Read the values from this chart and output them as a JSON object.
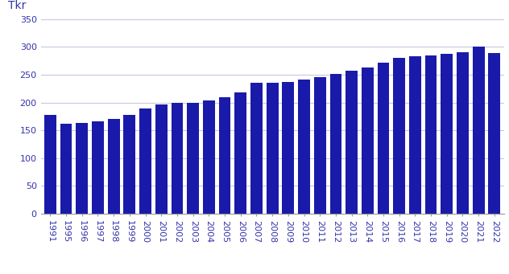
{
  "years": [
    "1991",
    "1995",
    "1996",
    "1997",
    "1998",
    "1999",
    "2000",
    "2001",
    "2002",
    "2003",
    "2004",
    "2005",
    "2006",
    "2007",
    "2008",
    "2009",
    "2010",
    "2011",
    "2012",
    "2013",
    "2014",
    "2015",
    "2016",
    "2017",
    "2018",
    "2019",
    "2020",
    "2021",
    "2022"
  ],
  "values": [
    178,
    162,
    163,
    166,
    170,
    178,
    190,
    197,
    199,
    200,
    204,
    210,
    218,
    235,
    235,
    237,
    242,
    246,
    252,
    258,
    263,
    272,
    281,
    283,
    285,
    288,
    290,
    300,
    289
  ],
  "bar_color": "#1a1aaa",
  "ylim": [
    0,
    350
  ],
  "yticks": [
    0,
    50,
    100,
    150,
    200,
    250,
    300,
    350
  ],
  "grid_color": "#c8c8dc",
  "background_color": "#ffffff",
  "tick_fontsize": 8,
  "tick_color": "#3333aa",
  "ylabel_text": "Tkr",
  "ylabel_fontsize": 10,
  "ylabel_color": "#3333aa"
}
